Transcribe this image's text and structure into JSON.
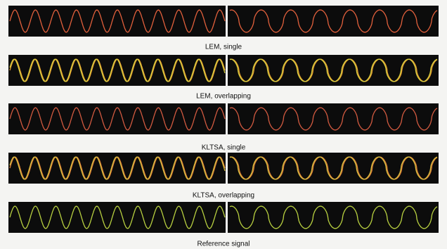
{
  "figure": {
    "captions": [
      "LEM, single",
      "LEM, overlapping",
      "KLTSA, single",
      "KLTSA, overlapping",
      "Reference signal"
    ]
  }
}
